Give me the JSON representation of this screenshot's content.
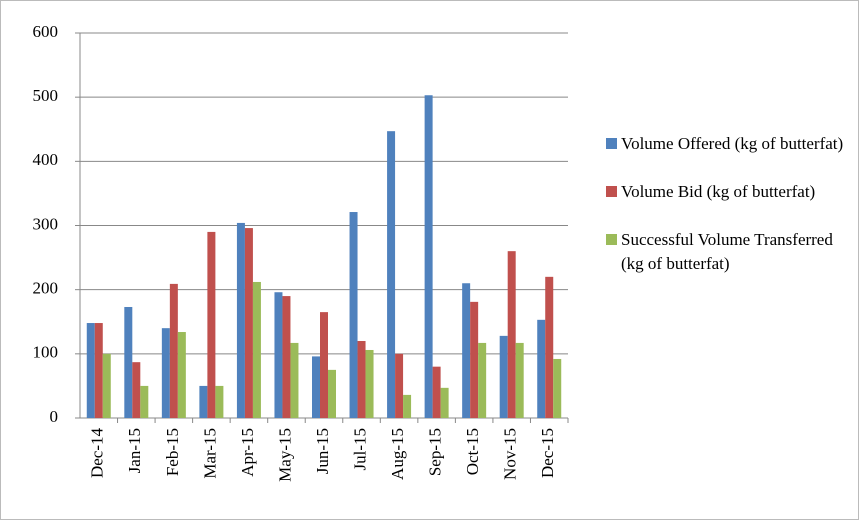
{
  "chart_data": {
    "type": "bar",
    "categories": [
      "Dec-14",
      "Jan-15",
      "Feb-15",
      "Mar-15",
      "Apr-15",
      "May-15",
      "Jun-15",
      "Jul-15",
      "Aug-15",
      "Sep-15",
      "Oct-15",
      "Nov-15",
      "Dec-15"
    ],
    "series": [
      {
        "name": "Volume Offered (kg of butterfat)",
        "color": "#4f81bd",
        "values": [
          148,
          173,
          140,
          50,
          304,
          196,
          96,
          321,
          447,
          503,
          210,
          128,
          153
        ]
      },
      {
        "name": "Volume Bid (kg of butterfat)",
        "color": "#c0504d",
        "values": [
          148,
          87,
          209,
          290,
          296,
          190,
          165,
          120,
          100,
          80,
          181,
          260,
          220
        ]
      },
      {
        "name": "Successful Volume Transferred (kg of butterfat)",
        "color": "#9bbb59",
        "values": [
          100,
          50,
          134,
          50,
          212,
          117,
          75,
          106,
          36,
          47,
          117,
          117,
          92
        ]
      }
    ],
    "ylim": [
      0,
      600
    ],
    "yticks": [
      0,
      100,
      200,
      300,
      400,
      500,
      600
    ],
    "grid": true,
    "legend": "right"
  }
}
